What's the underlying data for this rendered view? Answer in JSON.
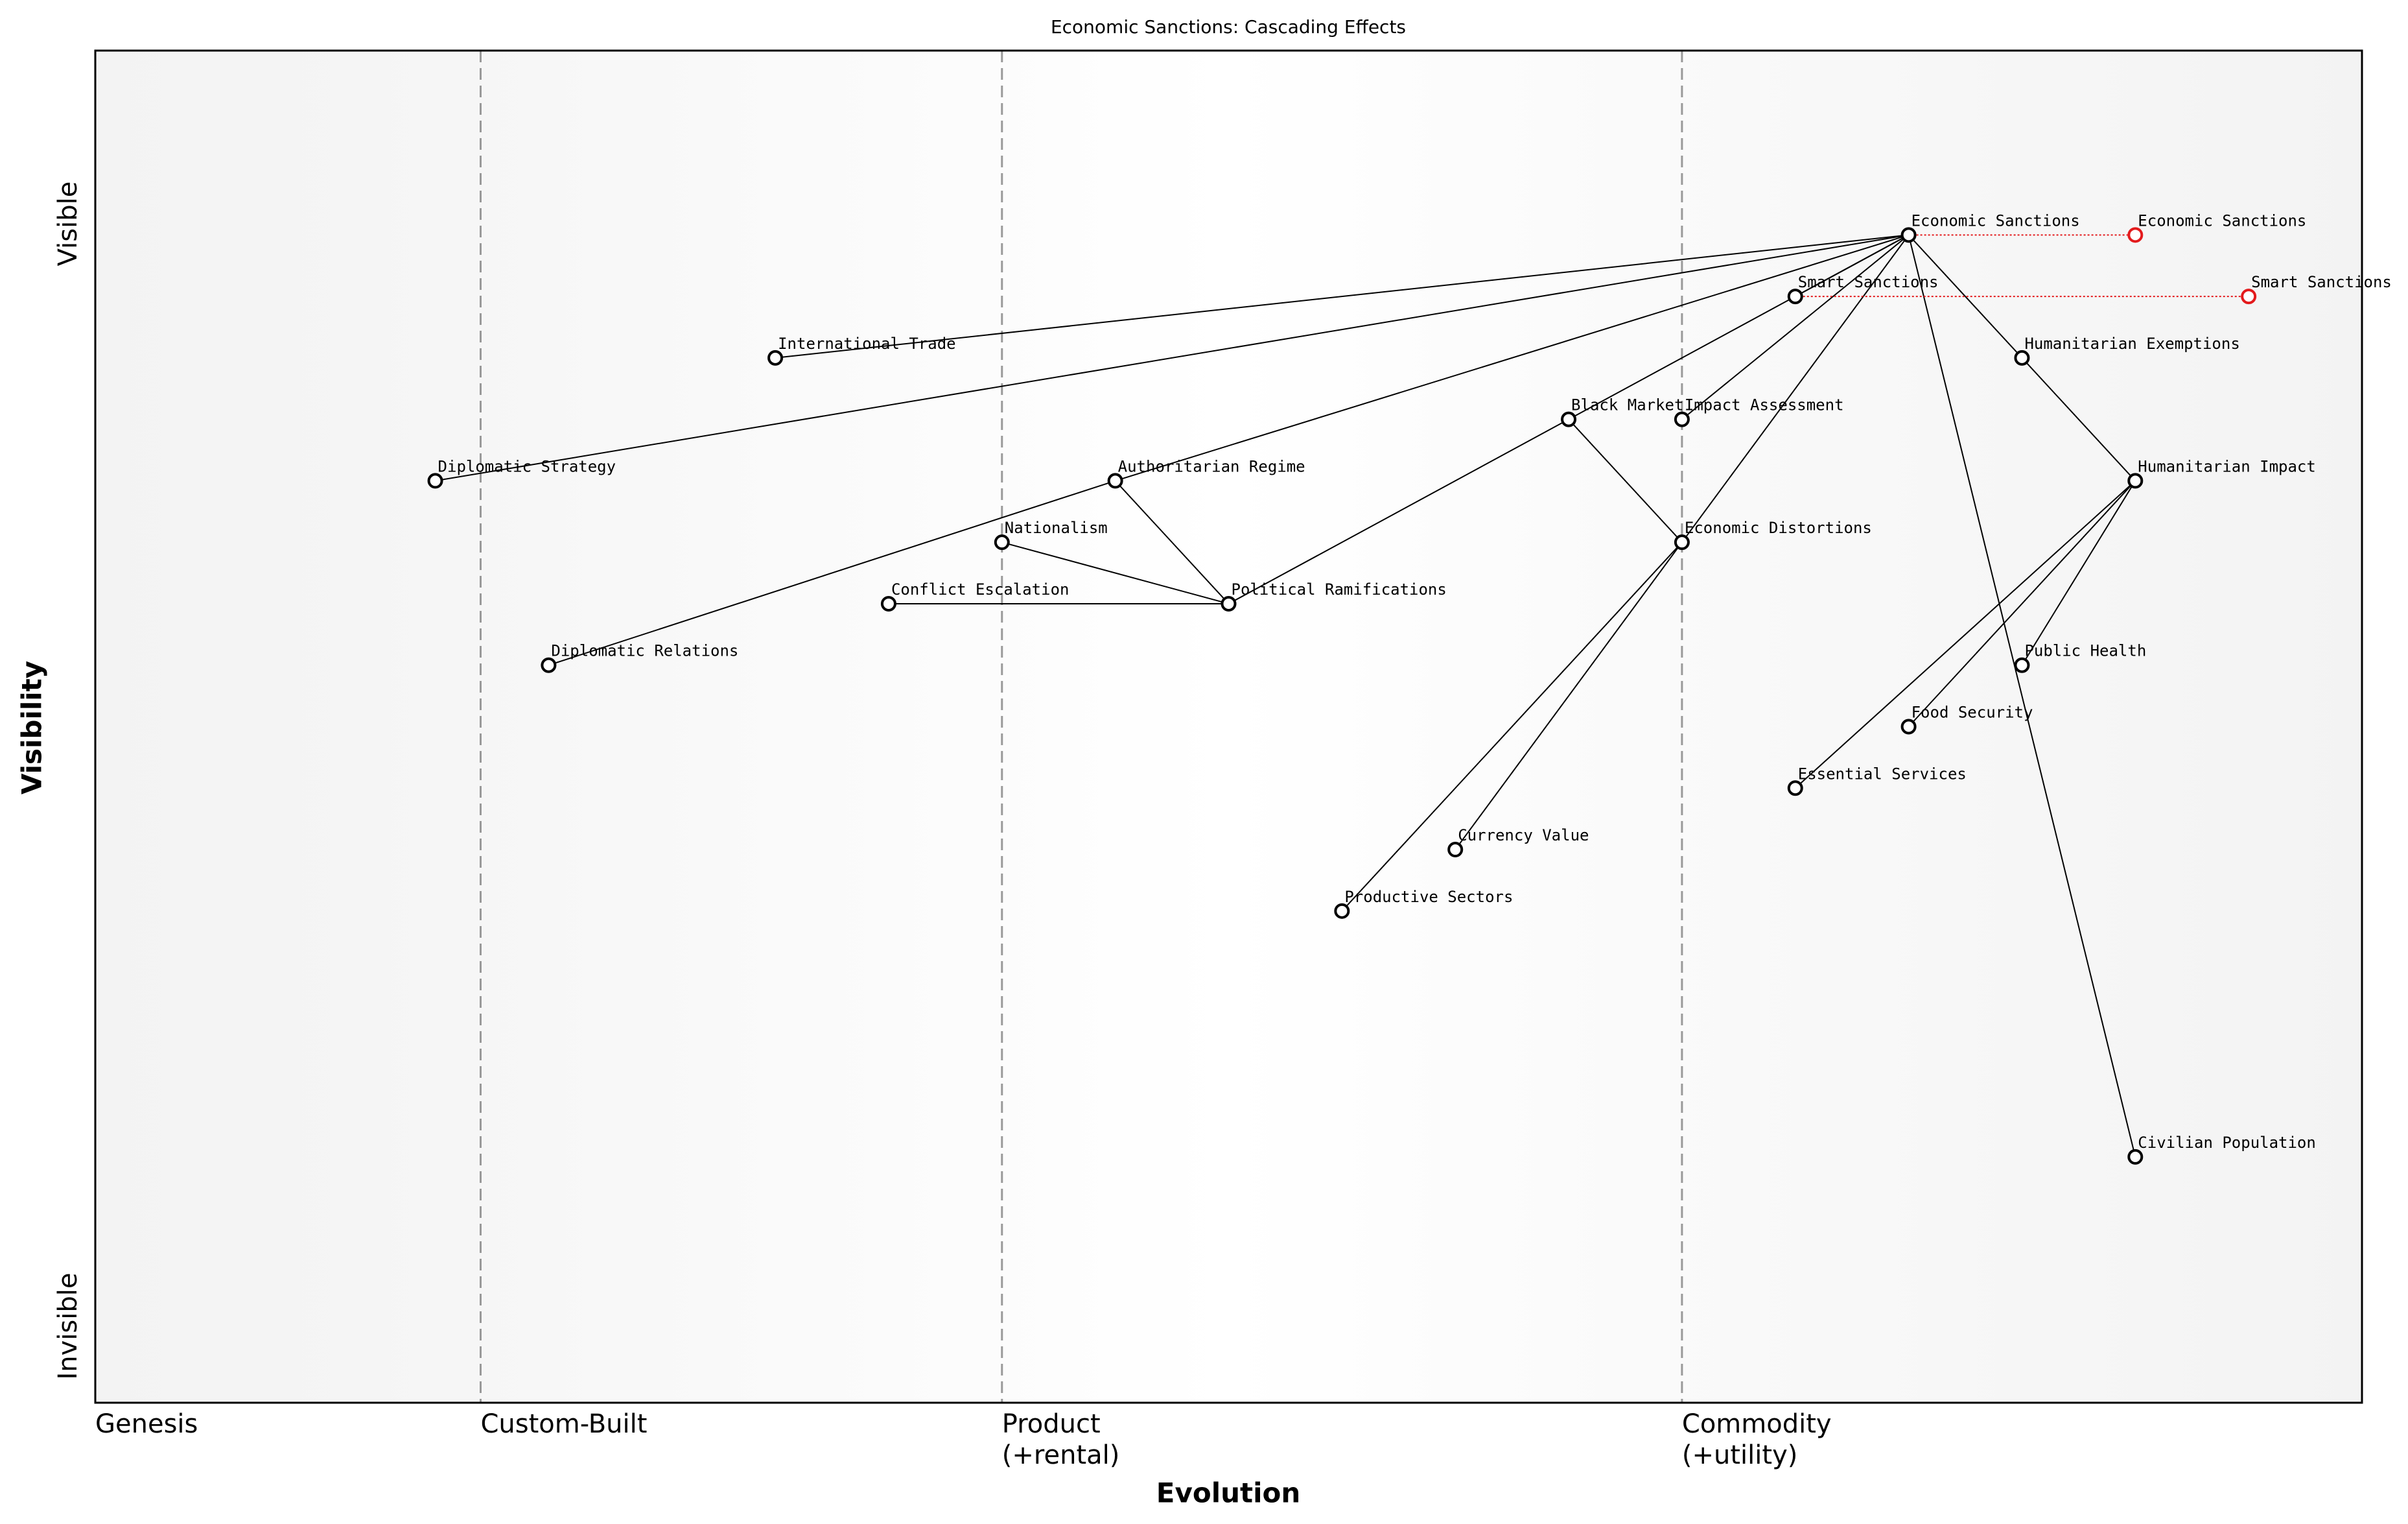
{
  "chart_data": {
    "type": "wardley",
    "title": "Economic Sanctions: Cascading Effects",
    "x_label": "Evolution",
    "y_label": "Visibility",
    "y_top_label": "Visible",
    "y_bottom_label": "Invisible",
    "xlim": [
      0,
      1
    ],
    "ylim": [
      0,
      1.1
    ],
    "xticks": [
      {
        "value": 0,
        "label": "Genesis"
      },
      {
        "value": 0.17,
        "label": "Custom-Built"
      },
      {
        "value": 0.4,
        "label": "Product\n(+rental)"
      },
      {
        "value": 0.7,
        "label": "Commodity\n(+utility)"
      }
    ],
    "stage_lines": [
      0.17,
      0.4,
      0.7
    ],
    "node_color": "#000000",
    "evolve_color": "#e31a1c",
    "nodes": [
      {
        "name": "Economic Sanctions",
        "x": 0.8,
        "y": 0.95
      },
      {
        "name": "Smart Sanctions",
        "x": 0.75,
        "y": 0.9
      },
      {
        "name": "International Trade",
        "x": 0.3,
        "y": 0.85
      },
      {
        "name": "Humanitarian Exemptions",
        "x": 0.85,
        "y": 0.85
      },
      {
        "name": "Black Market",
        "x": 0.65,
        "y": 0.8
      },
      {
        "name": "Impact Assessment",
        "x": 0.7,
        "y": 0.8
      },
      {
        "name": "Diplomatic Strategy",
        "x": 0.15,
        "y": 0.75
      },
      {
        "name": "Authoritarian Regime",
        "x": 0.45,
        "y": 0.75
      },
      {
        "name": "Humanitarian Impact",
        "x": 0.9,
        "y": 0.75
      },
      {
        "name": "Nationalism",
        "x": 0.4,
        "y": 0.7
      },
      {
        "name": "Economic Distortions",
        "x": 0.7,
        "y": 0.7
      },
      {
        "name": "Conflict Escalation",
        "x": 0.35,
        "y": 0.65
      },
      {
        "name": "Political Ramifications",
        "x": 0.5,
        "y": 0.65
      },
      {
        "name": "Diplomatic Relations",
        "x": 0.2,
        "y": 0.6
      },
      {
        "name": "Public Health",
        "x": 0.85,
        "y": 0.6
      },
      {
        "name": "Food Security",
        "x": 0.8,
        "y": 0.55
      },
      {
        "name": "Essential Services",
        "x": 0.75,
        "y": 0.5
      },
      {
        "name": "Currency Value",
        "x": 0.6,
        "y": 0.45
      },
      {
        "name": "Productive Sectors",
        "x": 0.55,
        "y": 0.4
      },
      {
        "name": "Civilian Population",
        "x": 0.9,
        "y": 0.2
      }
    ],
    "edges": [
      [
        "Economic Sanctions",
        "International Trade"
      ],
      [
        "Economic Sanctions",
        "Diplomatic Strategy"
      ],
      [
        "Economic Sanctions",
        "Authoritarian Regime"
      ],
      [
        "Economic Sanctions",
        "Smart Sanctions"
      ],
      [
        "Economic Sanctions",
        "Black Market"
      ],
      [
        "Economic Sanctions",
        "Impact Assessment"
      ],
      [
        "Economic Sanctions",
        "Economic Distortions"
      ],
      [
        "Economic Sanctions",
        "Humanitarian Exemptions"
      ],
      [
        "Economic Sanctions",
        "Civilian Population"
      ],
      [
        "Humanitarian Exemptions",
        "Humanitarian Impact"
      ],
      [
        "Black Market",
        "Economic Distortions"
      ],
      [
        "Black Market",
        "Political Ramifications"
      ],
      [
        "Authoritarian Regime",
        "Political Ramifications"
      ],
      [
        "Authoritarian Regime",
        "Diplomatic Relations"
      ],
      [
        "Nationalism",
        "Political Ramifications"
      ],
      [
        "Conflict Escalation",
        "Political Ramifications"
      ],
      [
        "Economic Distortions",
        "Productive Sectors"
      ],
      [
        "Economic Distortions",
        "Currency Value"
      ],
      [
        "Humanitarian Impact",
        "Public Health"
      ],
      [
        "Humanitarian Impact",
        "Food Security"
      ],
      [
        "Humanitarian Impact",
        "Essential Services"
      ]
    ],
    "evolutions": [
      {
        "name": "Economic Sanctions",
        "from_x": 0.8,
        "x": 0.9,
        "y": 0.95
      },
      {
        "name": "Smart Sanctions",
        "from_x": 0.75,
        "x": 0.95,
        "y": 0.9
      }
    ]
  }
}
